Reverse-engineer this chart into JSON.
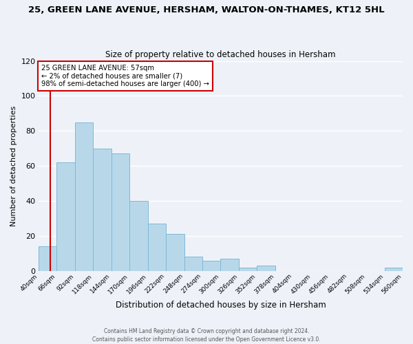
{
  "title": "25, GREEN LANE AVENUE, HERSHAM, WALTON-ON-THAMES, KT12 5HL",
  "subtitle": "Size of property relative to detached houses in Hersham",
  "xlabel": "Distribution of detached houses by size in Hersham",
  "ylabel": "Number of detached properties",
  "bar_color": "#b8d8ea",
  "bar_edge_color": "#7fb8d4",
  "highlight_color": "#cc0000",
  "background_color": "#eef2f8",
  "grid_color": "#ffffff",
  "bin_edges": [
    40,
    66,
    92,
    118,
    144,
    170,
    196,
    222,
    248,
    274,
    300,
    326,
    352,
    378,
    404,
    430,
    456,
    482,
    508,
    534,
    560
  ],
  "bin_labels": [
    "40sqm",
    "66sqm",
    "92sqm",
    "118sqm",
    "144sqm",
    "170sqm",
    "196sqm",
    "222sqm",
    "248sqm",
    "274sqm",
    "300sqm",
    "326sqm",
    "352sqm",
    "378sqm",
    "404sqm",
    "430sqm",
    "456sqm",
    "482sqm",
    "508sqm",
    "534sqm",
    "560sqm"
  ],
  "counts": [
    14,
    62,
    85,
    70,
    67,
    40,
    27,
    21,
    8,
    6,
    7,
    2,
    3,
    0,
    0,
    0,
    0,
    0,
    0,
    2
  ],
  "ylim": [
    0,
    120
  ],
  "yticks": [
    0,
    20,
    40,
    60,
    80,
    100,
    120
  ],
  "property_line_x": 57,
  "annotation_title": "25 GREEN LANE AVENUE: 57sqm",
  "annotation_line1": "← 2% of detached houses are smaller (7)",
  "annotation_line2": "98% of semi-detached houses are larger (400) →",
  "footer1": "Contains HM Land Registry data © Crown copyright and database right 2024.",
  "footer2": "Contains public sector information licensed under the Open Government Licence v3.0."
}
